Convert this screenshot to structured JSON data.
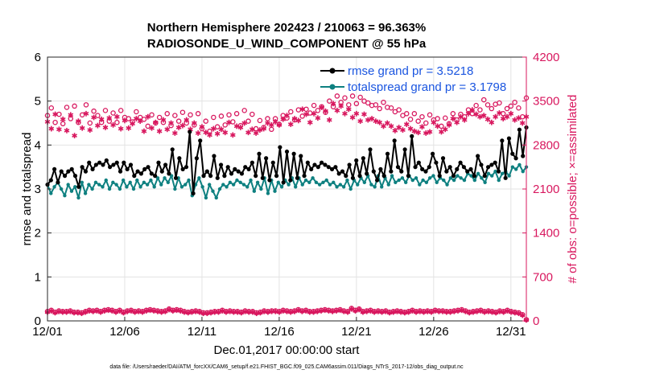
{
  "chart_data": {
    "type": "line",
    "title_line1": "Northern Hemisphere 202423 / 210063 = 96.363%",
    "title_line2": "RADIOSONDE_U_WIND_COMPONENT @ 55 hPa",
    "ylabel_left": "rmse and totalspread",
    "ylabel_right": "# of obs: o=possible; ×=assimilated",
    "xlabel": "Dec.01,2017 00:00:00 start",
    "footer": "data file: /Users/raeder/DAI/ATM_forcXX/CAM6_setup/f.e21.FHIST_BGC.f09_025.CAM6assim.011/Diags_NTrS_2017-12/obs_diag_output.nc",
    "x_range": [
      0,
      31
    ],
    "x_ticks": [
      {
        "value": 0,
        "label": "12/01"
      },
      {
        "value": 5,
        "label": "12/06"
      },
      {
        "value": 10,
        "label": "12/11"
      },
      {
        "value": 15,
        "label": "12/16"
      },
      {
        "value": 20,
        "label": "12/21"
      },
      {
        "value": 25,
        "label": "12/26"
      },
      {
        "value": 30,
        "label": "12/31"
      }
    ],
    "y_left_range": [
      0,
      6
    ],
    "y_left_ticks": [
      "0",
      "1",
      "2",
      "3",
      "4",
      "5",
      "6"
    ],
    "y_right_range": [
      0,
      4200
    ],
    "y_right_ticks": [
      "0",
      "700",
      "1400",
      "2100",
      "2800",
      "3500",
      "4200"
    ],
    "colors": {
      "rmse": "#000000",
      "totalspread": "#0e8080",
      "obs": "#d8175e",
      "legend_text": "#1a55e0"
    },
    "series": [
      {
        "name": "rmse",
        "legend": "rmse grand pr = 3.5218",
        "axis": "left",
        "values": [
          3.1,
          3.2,
          3.45,
          3.15,
          3.4,
          3.3,
          3.4,
          3.45,
          3.3,
          3.05,
          3.5,
          3.4,
          3.6,
          3.45,
          3.55,
          3.6,
          3.55,
          3.65,
          3.5,
          3.55,
          3.6,
          3.4,
          3.6,
          3.45,
          3.55,
          3.3,
          3.4,
          3.35,
          3.45,
          3.5,
          3.35,
          3.3,
          3.6,
          3.4,
          3.55,
          3.35,
          3.9,
          3.25,
          3.7,
          3.45,
          3.5,
          4.3,
          2.9,
          3.7,
          4.1,
          3.3,
          3.4,
          3.3,
          3.75,
          3.25,
          3.55,
          3.3,
          3.5,
          3.35,
          3.45,
          3.4,
          3.35,
          3.5,
          3.45,
          3.6,
          3.3,
          3.8,
          3.25,
          3.7,
          3.2,
          3.6,
          3.3,
          3.95,
          3.15,
          3.85,
          3.2,
          3.8,
          3.25,
          3.75,
          3.3,
          3.6,
          3.45,
          3.55,
          3.5,
          3.6,
          3.55,
          3.5,
          3.45,
          3.5,
          3.35,
          3.4,
          3.3,
          3.55,
          3.25,
          3.65,
          3.3,
          3.7,
          3.35,
          3.9,
          3.4,
          3.2,
          3.45,
          3.3,
          3.8,
          3.4,
          4.1,
          3.5,
          3.4,
          3.9,
          3.3,
          4.2,
          3.5,
          3.6,
          3.45,
          3.4,
          3.5,
          3.8,
          3.6,
          3.3,
          3.7,
          3.4,
          3.5,
          3.3,
          3.45,
          3.6,
          3.5,
          3.4,
          3.45,
          3.3,
          3.75,
          3.55,
          3.3,
          3.5,
          3.55,
          3.6,
          3.4,
          4.1,
          3.25,
          4.15,
          3.8,
          3.7,
          4.35,
          3.75,
          4.4
        ],
        "marker": "dot"
      },
      {
        "name": "totalspread",
        "legend": "totalspread grand pr = 3.1798",
        "axis": "left",
        "values": [
          3.1,
          2.9,
          3.05,
          3.15,
          3.0,
          2.85,
          3.1,
          2.95,
          3.05,
          2.8,
          3.15,
          2.9,
          3.1,
          3.0,
          3.15,
          3.1,
          3.05,
          3.2,
          3.0,
          3.15,
          3.1,
          3.0,
          3.2,
          3.05,
          3.15,
          3.0,
          3.2,
          3.05,
          3.15,
          3.1,
          3.2,
          3.05,
          3.25,
          3.1,
          3.25,
          3.15,
          3.3,
          3.0,
          3.25,
          3.05,
          3.1,
          3.2,
          2.85,
          3.1,
          3.25,
          3.05,
          2.8,
          3.1,
          2.95,
          2.8,
          3.0,
          3.1,
          3.05,
          3.15,
          3.1,
          3.2,
          3.15,
          3.1,
          3.05,
          3.2,
          2.95,
          3.15,
          3.0,
          3.25,
          2.9,
          3.2,
          2.95,
          3.15,
          3.05,
          3.2,
          3.1,
          3.25,
          3.05,
          3.25,
          3.1,
          3.2,
          3.15,
          3.25,
          3.15,
          3.1,
          3.15,
          3.2,
          3.1,
          3.15,
          3.05,
          3.1,
          3.05,
          3.2,
          3.0,
          3.2,
          3.1,
          3.25,
          3.15,
          3.3,
          3.1,
          3.05,
          3.3,
          3.05,
          3.25,
          3.1,
          3.3,
          3.15,
          3.2,
          3.25,
          3.15,
          3.3,
          3.2,
          3.25,
          3.1,
          3.2,
          3.15,
          3.25,
          3.3,
          3.15,
          3.25,
          3.2,
          3.1,
          3.25,
          3.2,
          3.3,
          3.25,
          3.2,
          3.35,
          3.3,
          3.2,
          3.35,
          3.25,
          3.15,
          3.35,
          3.3,
          3.4,
          3.2,
          3.35,
          3.4,
          3.3,
          3.5,
          3.45,
          3.55,
          3.4,
          3.5
        ]
      },
      {
        "name": "obs_possible",
        "axis": "right",
        "marker": "circle",
        "values": [
          3270,
          3390,
          3160,
          3290,
          3140,
          3400,
          3220,
          3420,
          3160,
          3280,
          3440,
          3150,
          3340,
          3270,
          3160,
          3350,
          3180,
          3310,
          3160,
          3350,
          3240,
          3220,
          3170,
          3330,
          3240,
          3210,
          3100,
          3280,
          3150,
          3240,
          3160,
          3300,
          3110,
          3270,
          3180,
          3320,
          3150,
          3280,
          3120,
          3300,
          3060,
          3180,
          3020,
          3240,
          3090,
          3260,
          3120,
          3280,
          3170,
          3300,
          3110,
          3350,
          3180,
          3290,
          3060,
          3190,
          3080,
          3220,
          3050,
          3220,
          3130,
          3270,
          3230,
          3330,
          3200,
          3360,
          3260,
          3370,
          3310,
          3430,
          3350,
          3410,
          3320,
          3500,
          3410,
          3580,
          3480,
          3550,
          3440,
          3580,
          3460,
          3560,
          3500,
          3470,
          3430,
          3440,
          3380,
          3480,
          3400,
          3390,
          3330,
          3360,
          3270,
          3300,
          3210,
          3300,
          3180,
          3250,
          3150,
          3280,
          3200,
          3220,
          3100,
          3230,
          3140,
          3300,
          3200,
          3290,
          3250,
          3360,
          3300,
          3430,
          3360,
          3520,
          3440,
          3380,
          3450,
          3470,
          3300,
          3380,
          3420,
          3480,
          3390,
          3250,
          3550
        ]
      },
      {
        "name": "obs_assimilated",
        "axis": "right",
        "marker": "asterisk",
        "values": [
          3170,
          3060,
          3290,
          3050,
          3210,
          3030,
          3280,
          2950,
          3180,
          3070,
          3300,
          3040,
          3240,
          3110,
          3210,
          3080,
          3230,
          3120,
          3250,
          3060,
          3190,
          3070,
          3140,
          3220,
          3180,
          3020,
          3250,
          3070,
          3160,
          3020,
          3200,
          3050,
          3150,
          2990,
          3080,
          3110,
          3200,
          3050,
          3150,
          2990,
          3090,
          3000,
          2960,
          3060,
          2980,
          3050,
          3000,
          3160,
          2960,
          3100,
          3080,
          3150,
          3000,
          3050,
          2990,
          3040,
          3060,
          3150,
          3120,
          3170,
          3120,
          3210,
          3270,
          3130,
          3220,
          3190,
          3370,
          3290,
          3160,
          3300,
          3230,
          3400,
          3340,
          3200,
          3460,
          3350,
          3420,
          3300,
          3370,
          3240,
          3300,
          3180,
          3290,
          3200,
          3220,
          3180,
          3160,
          3100,
          3150,
          3100,
          3030,
          3080,
          3040,
          3130,
          3060,
          3020,
          3000,
          3090,
          2990,
          3010,
          3160,
          3100,
          3010,
          3050,
          3120,
          3220,
          3160,
          3250,
          3200,
          3300,
          3360,
          3290,
          3250,
          3270,
          3210,
          3160,
          3250,
          3310,
          3220,
          3250,
          3300,
          3200,
          3230,
          3150,
          3250
        ]
      },
      {
        "name": "obs_small_possible",
        "axis": "right",
        "marker": "circle",
        "values": [
          150,
          170,
          140,
          160,
          150,
          150,
          160,
          140,
          140,
          130,
          150,
          170,
          160,
          170,
          150,
          170,
          180,
          170,
          150,
          170,
          140,
          160,
          170,
          150,
          160,
          150,
          170,
          180,
          170,
          160,
          150,
          160,
          190,
          170,
          180,
          170,
          150,
          140,
          150,
          160,
          150,
          130,
          130,
          140,
          150,
          150,
          170,
          150,
          160,
          150,
          150,
          140,
          160,
          150,
          150,
          130,
          140,
          160,
          150,
          160,
          160,
          150,
          170,
          160,
          150,
          160,
          180,
          160,
          170,
          150,
          150,
          160,
          170,
          180,
          170,
          160,
          170,
          180,
          160,
          150,
          200,
          170,
          190,
          150,
          160,
          170,
          150,
          160,
          150,
          160,
          140,
          150,
          160,
          150,
          140,
          150,
          170,
          150,
          160,
          150,
          160,
          150,
          170,
          160,
          160,
          150,
          150,
          160,
          170,
          180,
          160,
          140,
          150,
          160,
          170,
          150,
          160,
          150,
          140,
          160,
          150,
          170,
          150,
          140,
          130,
          100,
          20
        ]
      },
      {
        "name": "obs_small_assimilated",
        "axis": "right",
        "marker": "asterisk",
        "values": [
          140,
          160,
          130,
          150,
          140,
          140,
          150,
          130,
          130,
          120,
          140,
          160,
          150,
          160,
          140,
          160,
          170,
          160,
          140,
          160,
          130,
          150,
          160,
          140,
          150,
          140,
          160,
          170,
          160,
          150,
          140,
          150,
          180,
          160,
          170,
          160,
          140,
          130,
          140,
          150,
          140,
          120,
          120,
          130,
          140,
          140,
          160,
          140,
          150,
          140,
          140,
          130,
          150,
          140,
          140,
          120,
          130,
          150,
          140,
          150,
          150,
          140,
          160,
          150,
          140,
          150,
          170,
          150,
          160,
          140,
          140,
          150,
          160,
          170,
          160,
          150,
          160,
          170,
          150,
          140,
          190,
          160,
          180,
          140,
          150,
          160,
          140,
          150,
          140,
          150,
          130,
          140,
          150,
          140,
          130,
          140,
          160,
          140,
          150,
          140,
          150,
          140,
          160,
          150,
          150,
          140,
          140,
          150,
          160,
          170,
          150,
          130,
          140,
          150,
          160,
          140,
          150,
          140,
          130,
          150,
          140,
          160,
          140,
          130,
          120,
          90,
          15
        ]
      }
    ]
  }
}
